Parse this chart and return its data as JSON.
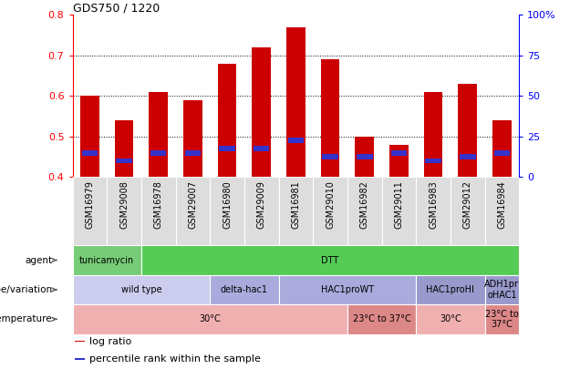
{
  "title": "GDS750 / 1220",
  "samples": [
    "GSM16979",
    "GSM29008",
    "GSM16978",
    "GSM29007",
    "GSM16980",
    "GSM29009",
    "GSM16981",
    "GSM29010",
    "GSM16982",
    "GSM29011",
    "GSM16983",
    "GSM29012",
    "GSM16984"
  ],
  "log_ratio": [
    0.6,
    0.54,
    0.61,
    0.59,
    0.68,
    0.72,
    0.77,
    0.69,
    0.5,
    0.48,
    0.61,
    0.63,
    0.54
  ],
  "percentile": [
    0.46,
    0.44,
    0.46,
    0.46,
    0.47,
    0.47,
    0.49,
    0.45,
    0.45,
    0.46,
    0.44,
    0.45,
    0.46
  ],
  "bar_bottom": 0.4,
  "ylim": [
    0.4,
    0.8
  ],
  "y2lim": [
    0,
    100
  ],
  "yticks": [
    0.4,
    0.5,
    0.6,
    0.7,
    0.8
  ],
  "y2ticks": [
    0,
    25,
    50,
    75,
    100
  ],
  "bar_color": "#cc0000",
  "percentile_color": "#3333cc",
  "bar_width": 0.55,
  "gridlines": [
    0.5,
    0.6,
    0.7
  ],
  "agent_segments": [
    {
      "text": "tunicamycin",
      "start": 0,
      "end": 2,
      "color": "#77cc77"
    },
    {
      "text": "DTT",
      "start": 2,
      "end": 13,
      "color": "#55cc55"
    }
  ],
  "genotype_segments": [
    {
      "text": "wild type",
      "start": 0,
      "end": 4,
      "color": "#ccccee"
    },
    {
      "text": "delta-hac1",
      "start": 4,
      "end": 6,
      "color": "#aaaadd"
    },
    {
      "text": "HAC1proWT",
      "start": 6,
      "end": 10,
      "color": "#aaaadd"
    },
    {
      "text": "HAC1proHI",
      "start": 10,
      "end": 12,
      "color": "#9999cc"
    },
    {
      "text": "ADH1pr\noHAC1",
      "start": 12,
      "end": 13,
      "color": "#9999cc"
    }
  ],
  "temperature_segments": [
    {
      "text": "30°C",
      "start": 0,
      "end": 8,
      "color": "#f0b0b0"
    },
    {
      "text": "23°C to 37°C",
      "start": 8,
      "end": 10,
      "color": "#dd8888"
    },
    {
      "text": "30°C",
      "start": 10,
      "end": 12,
      "color": "#f0b0b0"
    },
    {
      "text": "23°C to\n37°C",
      "start": 12,
      "end": 13,
      "color": "#dd8888"
    }
  ],
  "row_labels": [
    "agent",
    "genotype/variation",
    "temperature"
  ],
  "legend_items": [
    {
      "label": "log ratio",
      "color": "#cc0000"
    },
    {
      "label": "percentile rank within the sample",
      "color": "#3333cc"
    }
  ],
  "label_box_color": "#dddddd",
  "figure_width": 6.36,
  "figure_height": 4.05,
  "dpi": 100
}
